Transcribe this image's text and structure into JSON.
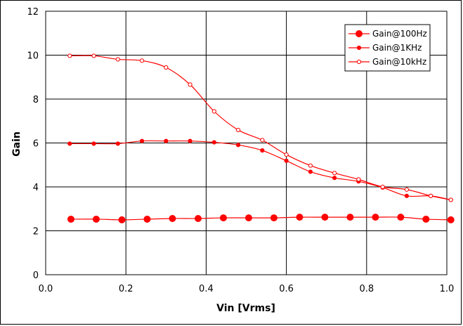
{
  "chart_data": {
    "type": "line",
    "title": "",
    "xlabel": "Vin  [Vrms]",
    "ylabel": "Gain",
    "xlim": [
      0,
      1.0
    ],
    "ylim": [
      0,
      12
    ],
    "x_ticks": [
      "0.0",
      "0.2",
      "0.4",
      "0.6",
      "0.8",
      "1.0"
    ],
    "y_ticks": [
      "0",
      "2",
      "4",
      "6",
      "8",
      "10",
      "12"
    ],
    "grid": true,
    "legend_position": "top-right",
    "colors": {
      "series": "#ff0000",
      "grid": "#000000"
    },
    "series": [
      {
        "name": "Gain@100Hz",
        "marker": "filled-large",
        "x": [
          0.063,
          0.126,
          0.19,
          0.253,
          0.316,
          0.38,
          0.443,
          0.506,
          0.569,
          0.633,
          0.696,
          0.759,
          0.822,
          0.885,
          0.948,
          1.01
        ],
        "y": [
          2.53,
          2.53,
          2.5,
          2.53,
          2.56,
          2.56,
          2.59,
          2.59,
          2.59,
          2.62,
          2.62,
          2.62,
          2.62,
          2.62,
          2.53,
          2.5
        ]
      },
      {
        "name": "Gain@1KHz",
        "marker": "filled-small",
        "x": [
          0.06,
          0.12,
          0.18,
          0.24,
          0.3,
          0.36,
          0.42,
          0.48,
          0.54,
          0.6,
          0.66,
          0.72,
          0.78,
          0.84,
          0.9,
          0.96,
          1.01
        ],
        "y": [
          5.97,
          5.97,
          5.97,
          6.09,
          6.09,
          6.09,
          6.03,
          5.91,
          5.66,
          5.19,
          4.69,
          4.41,
          4.25,
          3.97,
          3.59,
          3.59,
          3.41
        ]
      },
      {
        "name": "Gain@10kHz",
        "marker": "open-small",
        "x": [
          0.06,
          0.12,
          0.18,
          0.24,
          0.3,
          0.36,
          0.42,
          0.48,
          0.54,
          0.6,
          0.66,
          0.72,
          0.78,
          0.84,
          0.9,
          0.96,
          1.01
        ],
        "y": [
          9.97,
          9.97,
          9.81,
          9.75,
          9.44,
          8.66,
          7.44,
          6.59,
          6.13,
          5.47,
          4.97,
          4.63,
          4.34,
          4.0,
          3.88,
          3.59,
          3.41
        ]
      }
    ]
  }
}
